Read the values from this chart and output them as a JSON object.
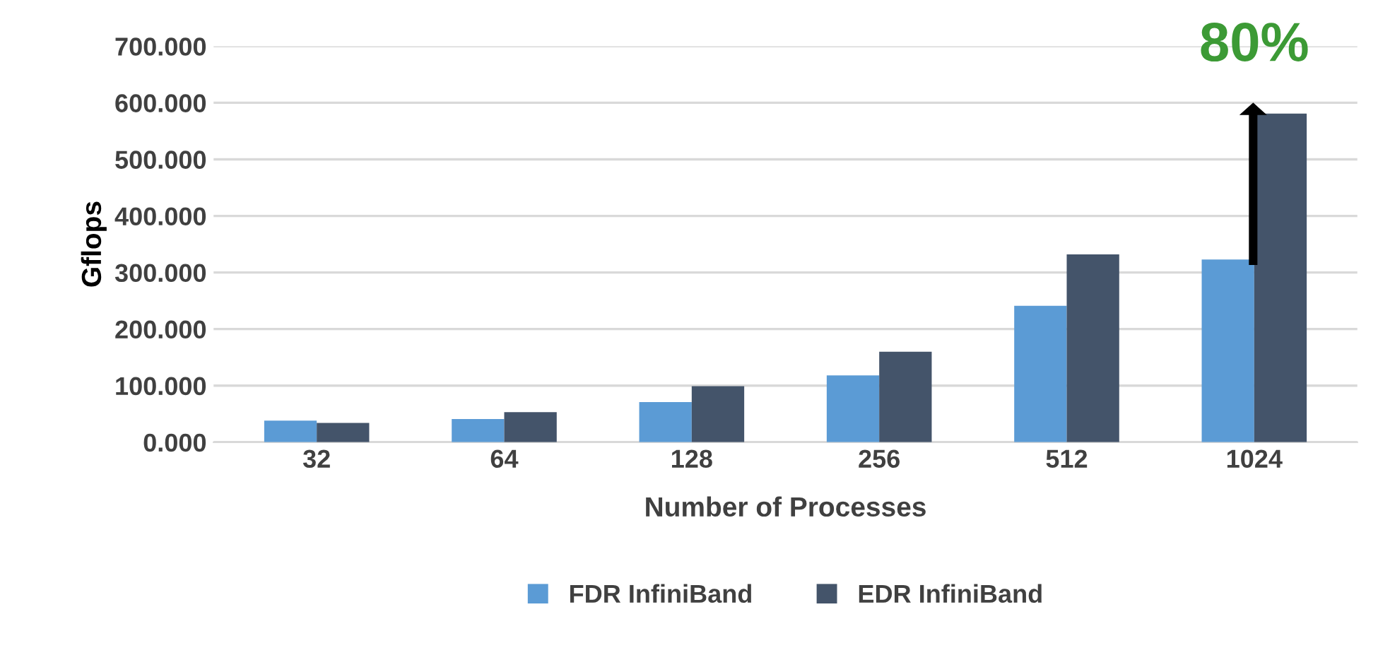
{
  "chart_data": {
    "type": "bar",
    "xlabel": "Number of Processes",
    "ylabel": "Gflops",
    "categories": [
      "32",
      "64",
      "128",
      "256",
      "512",
      "1024"
    ],
    "series": [
      {
        "name": "FDR InfiniBand",
        "color": "#5b9bd5",
        "values": [
          38,
          41,
          71,
          118,
          241,
          323
        ]
      },
      {
        "name": "EDR InfiniBand",
        "color": "#44546a",
        "values": [
          34,
          53,
          99,
          160,
          332,
          581
        ]
      }
    ],
    "ylim": [
      0,
      700
    ],
    "yticks": [
      {
        "value": 0,
        "label": "0.000"
      },
      {
        "value": 100,
        "label": "100.000"
      },
      {
        "value": 200,
        "label": "200.000"
      },
      {
        "value": 300,
        "label": "300.000"
      },
      {
        "value": 400,
        "label": "400.000"
      },
      {
        "value": 500,
        "label": "500.000"
      },
      {
        "value": 600,
        "label": "600.000"
      },
      {
        "value": 700,
        "label": "700.000"
      }
    ],
    "grid": "y",
    "legend": "bottom",
    "annotations": [
      {
        "text": "80%",
        "x": "1024",
        "y": 581
      }
    ]
  }
}
